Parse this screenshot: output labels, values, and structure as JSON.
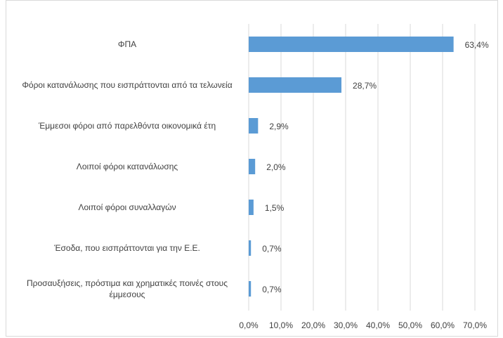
{
  "chart_data": {
    "type": "bar",
    "orientation": "horizontal",
    "categories": [
      "ΦΠΑ",
      "Φόροι κατανάλωσης που εισπράττονται από τα τελωνεία",
      "Έμμεσοι φόροι από παρελθόντα οικονομικά έτη",
      "Λοιποί φόροι κατανάλωσης",
      "Λοιποί φόροι συναλλαγών",
      "Έσοδα, που εισπράττονται για την Ε.Ε.",
      "Προσαυξήσεις, πρόστιμα και χρηματικές ποινές στους έμμεσους"
    ],
    "values": [
      63.4,
      28.7,
      2.9,
      2.0,
      1.5,
      0.7,
      0.7
    ],
    "value_labels": [
      "63,4%",
      "28,7%",
      "2,9%",
      "2,0%",
      "1,5%",
      "0,7%",
      "0,7%"
    ],
    "color": "#5b9bd5",
    "xlim": [
      0,
      70
    ],
    "xticks": [
      {
        "value": 0,
        "label": "0,0%"
      },
      {
        "value": 10,
        "label": "10,0%"
      },
      {
        "value": 20,
        "label": "20,0%"
      },
      {
        "value": 30,
        "label": "30,0%"
      },
      {
        "value": 40,
        "label": "40,0%"
      },
      {
        "value": 50,
        "label": "50,0%"
      },
      {
        "value": 60,
        "label": "60,0%"
      },
      {
        "value": 70,
        "label": "70,0%"
      }
    ],
    "grid": true
  }
}
